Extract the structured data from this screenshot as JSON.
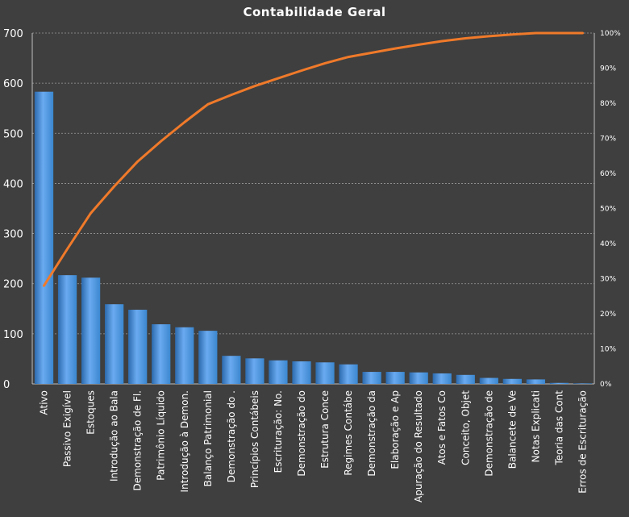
{
  "chart_data": {
    "type": "bar",
    "title": "Contabilidade  Geral",
    "xlabel": "",
    "ylabel": "",
    "ylim": [
      0,
      700
    ],
    "y2lim": [
      0,
      100
    ],
    "grid": true,
    "categories": [
      "Ativo",
      "Passivo Exigível",
      "Estoques",
      "Introdução  ao Bala",
      "Demonstração de Fl.",
      "Patrimônio Líquido",
      "Introdução à Demon.",
      "Balanço Patrimonial",
      "Demonstração do .",
      "Princípios Contábeis",
      "Escrituração: No.",
      "Demonstração do",
      "Estrutura Conce",
      "Regimes Contábe",
      "Demonstração da",
      "Elaboração e Ap",
      "Apuração do Resultado",
      "Atos e Fatos Co",
      "Conceito, Objet",
      "Demonstração de",
      "Balancete de Ve",
      "Notas Explicati",
      "Teoria das Cont",
      "Erros de Escrituração"
    ],
    "values": [
      583,
      217,
      212,
      159,
      148,
      119,
      113,
      106,
      56,
      51,
      47,
      45,
      43,
      39,
      24,
      24,
      23,
      21,
      18,
      12,
      10,
      9,
      2,
      1
    ],
    "cumulative_percent": [
      28,
      38.5,
      48.7,
      56.3,
      63.4,
      69.2,
      74.6,
      79.7,
      82.4,
      84.9,
      87.1,
      89.3,
      91.4,
      93.2,
      94.4,
      95.6,
      96.7,
      97.7,
      98.5,
      99.1,
      99.6,
      100,
      100,
      100
    ],
    "y_ticks": [
      "0",
      "100",
      "200",
      "300",
      "400",
      "500",
      "600",
      "700"
    ],
    "y2_ticks": [
      "0%",
      "10%",
      "20%",
      "30%",
      "40%",
      "50%",
      "60%",
      "70%",
      "80%",
      "90%",
      "100%"
    ],
    "colors": {
      "background": "#3f3f3f",
      "bar": "#3b87cf",
      "bar_light": "#6aaaf0",
      "bar_dark": "#2c6aad",
      "line": "#f07a2a",
      "grid": "#9a9a9a",
      "text": "#ffffff"
    }
  }
}
